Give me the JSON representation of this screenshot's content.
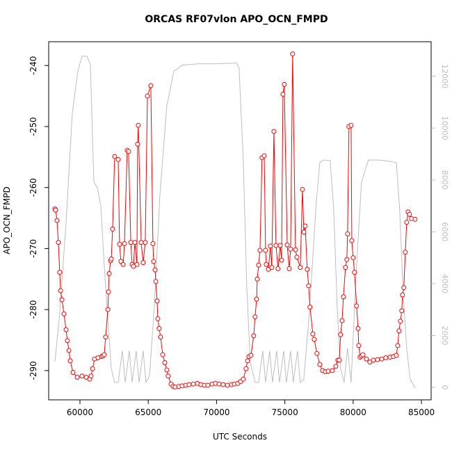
{
  "chart_data": {
    "type": "line",
    "title": "ORCAS RF07vlon APO_OCN_FMPD",
    "x_label": "UTC Seconds",
    "y_label": "APO_OCN_FMPD",
    "xlim": [
      57710,
      85710
    ],
    "ylim": [
      -294.8,
      -236.1
    ],
    "y2lim": [
      -480,
      13330
    ],
    "xticks": [
      60000,
      65000,
      70000,
      75000,
      80000,
      85000
    ],
    "yticks": [
      -290,
      -280,
      -270,
      -260,
      -250,
      -240
    ],
    "y2ticks": [
      0,
      2000,
      4000,
      6000,
      8000,
      10000,
      12000
    ],
    "series": [
      {
        "color": "#bebebe",
        "axis": "y2",
        "markers": false,
        "x": [
          58170,
          58520,
          58980,
          59440,
          59850,
          60150,
          60510,
          60760,
          61020,
          61270,
          61530,
          61780,
          62040,
          62290,
          62540,
          62800,
          63100,
          63310,
          63610,
          63820,
          64120,
          64330,
          64630,
          64830,
          65090,
          65450,
          65850,
          66360,
          66870,
          67480,
          68650,
          69920,
          71450,
          71650,
          71960,
          72210,
          72470,
          72820,
          73080,
          73380,
          73590,
          73890,
          74100,
          74400,
          74610,
          74910,
          75110,
          75420,
          75620,
          75930,
          76130,
          76390,
          76790,
          77300,
          77560,
          77810,
          78320,
          78580,
          78830,
          79080,
          79340,
          79590,
          79850,
          80200,
          80610,
          81120,
          81880,
          82650,
          83160,
          83410,
          83660,
          83920,
          84170,
          84480,
          84580
        ],
        "values": [
          990,
          2850,
          6320,
          10590,
          12190,
          12770,
          12770,
          12450,
          7920,
          7710,
          6990,
          4720,
          2590,
          720,
          190,
          190,
          1410,
          190,
          1410,
          190,
          1410,
          190,
          1410,
          190,
          450,
          3120,
          7390,
          10850,
          12190,
          12430,
          12480,
          12480,
          12510,
          12320,
          8720,
          3920,
          990,
          190,
          190,
          1410,
          190,
          1410,
          190,
          1410,
          190,
          1410,
          190,
          1410,
          190,
          1410,
          190,
          320,
          2850,
          7120,
          8670,
          8770,
          8750,
          6850,
          3120,
          720,
          190,
          1520,
          190,
          4190,
          7920,
          8770,
          8770,
          8720,
          8670,
          6850,
          3650,
          1520,
          320,
          30,
          0
        ]
      },
      {
        "color": "#ff0000",
        "axis": "y",
        "markers": true,
        "x": [
          58170,
          58220,
          58320,
          58420,
          58520,
          58580,
          58680,
          58830,
          58980,
          59080,
          59190,
          59290,
          59490,
          59800,
          60150,
          60460,
          60710,
          60810,
          60920,
          61070,
          61320,
          61580,
          61680,
          61780,
          61880,
          62040,
          62090,
          62140,
          62240,
          62290,
          62390,
          62540,
          62800,
          62900,
          63000,
          63160,
          63260,
          63460,
          63560,
          63720,
          63820,
          63920,
          64020,
          64170,
          64220,
          64270,
          64480,
          64630,
          64780,
          64940,
          65190,
          65340,
          65390,
          65500,
          65550,
          65650,
          65700,
          65800,
          65900,
          66060,
          66210,
          66360,
          66460,
          66670,
          66820,
          66970,
          67230,
          67480,
          67740,
          67990,
          68300,
          68600,
          68850,
          69110,
          69360,
          69670,
          69920,
          70180,
          70480,
          70790,
          71090,
          71300,
          71550,
          71760,
          71960,
          72160,
          72270,
          72370,
          72520,
          72720,
          72820,
          72930,
          72980,
          73080,
          73180,
          73330,
          73490,
          73590,
          73640,
          73790,
          73940,
          74040,
          74200,
          74350,
          74500,
          74660,
          74760,
          74860,
          74960,
          75170,
          75320,
          75420,
          75570,
          75780,
          75880,
          76130,
          76290,
          76390,
          76490,
          76640,
          76740,
          76840,
          77050,
          77150,
          77350,
          77560,
          77760,
          77960,
          78170,
          78470,
          78730,
          78880,
          78980,
          79080,
          79190,
          79290,
          79440,
          79540,
          79590,
          79690,
          79850,
          79900,
          80000,
          80100,
          80250,
          80360,
          80410,
          80510,
          80610,
          80710,
          80970,
          81220,
          81480,
          81780,
          82090,
          82390,
          82700,
          82950,
          83160,
          83260,
          83360,
          83460,
          83560,
          83610,
          83710,
          83820,
          83920,
          84020,
          84120,
          84270,
          84530
        ],
        "values": [
          -263.5,
          -263.7,
          -265.4,
          -269.0,
          -273.9,
          -276.9,
          -278.4,
          -280.7,
          -283.3,
          -285.1,
          -286.7,
          -288.4,
          -290.3,
          -291.1,
          -290.9,
          -291.1,
          -291.4,
          -290.9,
          -289.7,
          -288.1,
          -287.9,
          -287.7,
          -287.6,
          -287.4,
          -284.5,
          -280.0,
          -277.1,
          -274.1,
          -272.0,
          -271.7,
          -266.8,
          -254.9,
          -255.4,
          -269.3,
          -272.1,
          -272.6,
          -269.2,
          -253.9,
          -254.1,
          -269.0,
          -272.6,
          -272.9,
          -269.0,
          -272.6,
          -252.9,
          -249.8,
          -269.0,
          -272.3,
          -269.0,
          -245.0,
          -243.3,
          -269.2,
          -272.1,
          -273.5,
          -275.4,
          -278.6,
          -281.5,
          -283.1,
          -284.5,
          -287.4,
          -288.7,
          -289.9,
          -290.9,
          -292.2,
          -292.6,
          -292.7,
          -292.6,
          -292.5,
          -292.4,
          -292.3,
          -292.2,
          -292.1,
          -292.3,
          -292.4,
          -292.4,
          -292.2,
          -292.1,
          -292.2,
          -292.3,
          -292.4,
          -292.3,
          -292.2,
          -292.1,
          -291.8,
          -291.4,
          -289.7,
          -288.4,
          -287.7,
          -287.5,
          -284.3,
          -281.2,
          -278.3,
          -275.0,
          -272.7,
          -270.3,
          -255.1,
          -254.8,
          -270.3,
          -272.6,
          -273.4,
          -269.6,
          -273.1,
          -250.8,
          -269.5,
          -273.3,
          -269.5,
          -271.9,
          -244.7,
          -243.1,
          -269.4,
          -273.3,
          -270.1,
          -238.1,
          -270.2,
          -271.4,
          -273.1,
          -260.3,
          -267.3,
          -266.3,
          -273.4,
          -276.1,
          -279.6,
          -284.0,
          -284.9,
          -287.2,
          -289.0,
          -290.0,
          -290.2,
          -290.1,
          -290.0,
          -289.3,
          -288.3,
          -288.3,
          -284.1,
          -281.8,
          -277.9,
          -273.1,
          -271.8,
          -267.6,
          -250.0,
          -249.8,
          -268.7,
          -271.5,
          -273.9,
          -279.4,
          -283.1,
          -285.9,
          -287.8,
          -287.6,
          -287.4,
          -288.1,
          -288.6,
          -288.3,
          -288.2,
          -288.1,
          -287.9,
          -287.8,
          -287.7,
          -287.5,
          -285.9,
          -283.5,
          -281.9,
          -280.2,
          -277.6,
          -276.4,
          -270.6,
          -265.7,
          -264.0,
          -264.4,
          -265.1,
          -265.2
        ]
      }
    ]
  }
}
